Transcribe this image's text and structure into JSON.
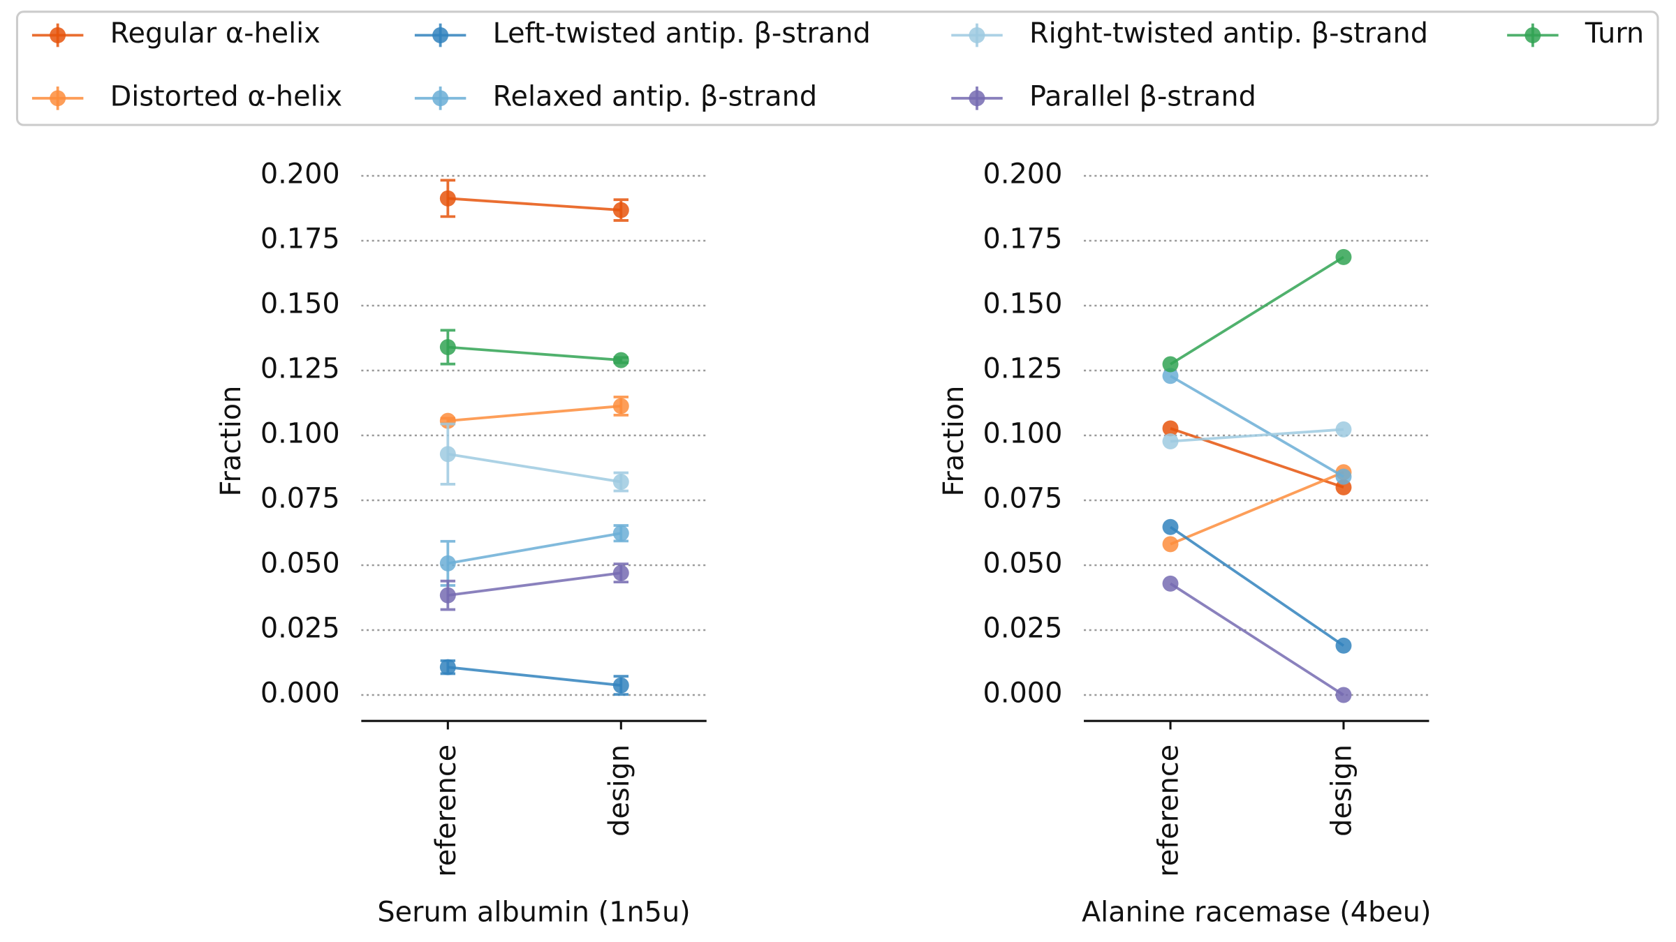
{
  "chart_data": [
    {
      "type": "line",
      "x_label": "Serum albumin (1n5u)",
      "y_label": "Fraction",
      "categories": [
        "reference",
        "design"
      ],
      "ylim": [
        -0.01,
        0.204
      ],
      "yticks": [
        {
          "value": 0,
          "label": "0.000"
        },
        0.025,
        {
          "value": 0.05,
          "label": "0.050"
        },
        0.075,
        {
          "value": 0.1,
          "label": "0.100"
        },
        0.125,
        {
          "value": 0.15,
          "label": "0.150"
        },
        0.175,
        {
          "value": 0.2,
          "label": "0.200"
        }
      ],
      "grid": true,
      "series": [
        {
          "name": "Regular α-helix",
          "color": "#e6550d",
          "values": [
            0.1913,
            0.1868
          ],
          "errors": [
            0.007,
            0.004
          ]
        },
        {
          "name": "Distorted α-helix",
          "color": "#fd8d3c",
          "values": [
            0.1056,
            0.1113
          ],
          "errors": [
            0.001,
            0.0035
          ]
        },
        {
          "name": "Left-twisted antip. β-strand",
          "color": "#3182bd",
          "values": [
            0.0107,
            0.0037
          ],
          "errors": [
            0.0025,
            0.0035
          ]
        },
        {
          "name": "Relaxed antip. β-strand",
          "color": "#6baed6",
          "values": [
            0.0507,
            0.0623
          ],
          "errors": [
            0.0085,
            0.003
          ]
        },
        {
          "name": "Right-twisted antip. β-strand",
          "color": "#9ecae1",
          "values": [
            0.0928,
            0.0821
          ],
          "errors": [
            0.0116,
            0.0035
          ]
        },
        {
          "name": "Parallel β-strand",
          "color": "#756bb1",
          "values": [
            0.0384,
            0.047
          ],
          "errors": [
            0.0055,
            0.0035
          ]
        },
        {
          "name": "Turn",
          "color": "#31a354",
          "values": [
            0.134,
            0.129
          ],
          "errors": [
            0.0065,
            0.001
          ]
        }
      ]
    },
    {
      "type": "line",
      "x_label": "Alanine racemase (4beu)",
      "y_label": "Fraction",
      "categories": [
        "reference",
        "design"
      ],
      "ylim": [
        -0.01,
        0.204
      ],
      "yticks": [
        {
          "value": 0,
          "label": "0.000"
        },
        0.025,
        {
          "value": 0.05,
          "label": "0.050"
        },
        0.075,
        {
          "value": 0.1,
          "label": "0.100"
        },
        0.125,
        {
          "value": 0.15,
          "label": "0.150"
        },
        0.175,
        {
          "value": 0.2,
          "label": "0.200"
        }
      ],
      "grid": true,
      "series": [
        {
          "name": "Regular α-helix",
          "color": "#e6550d",
          "values": [
            0.1027,
            0.08
          ]
        },
        {
          "name": "Distorted α-helix",
          "color": "#fd8d3c",
          "values": [
            0.0581,
            0.0858
          ]
        },
        {
          "name": "Left-twisted antip. β-strand",
          "color": "#3182bd",
          "values": [
            0.0647,
            0.019
          ]
        },
        {
          "name": "Relaxed antip. β-strand",
          "color": "#6baed6",
          "values": [
            0.1229,
            0.0841
          ]
        },
        {
          "name": "Right-twisted antip. β-strand",
          "color": "#9ecae1",
          "values": [
            0.0977,
            0.1023
          ]
        },
        {
          "name": "Parallel β-strand",
          "color": "#756bb1",
          "values": [
            0.0429,
            0
          ]
        },
        {
          "name": "Turn",
          "color": "#31a354",
          "values": [
            0.1274,
            0.1687
          ]
        }
      ]
    }
  ]
}
